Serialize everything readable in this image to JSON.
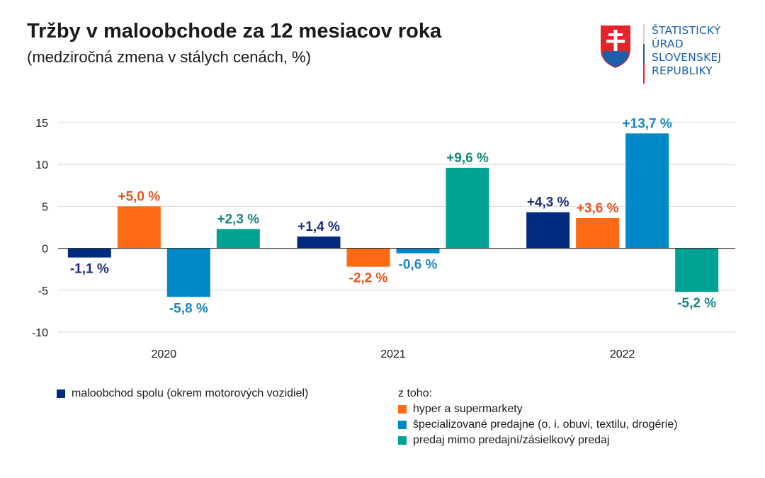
{
  "header": {
    "title": "Tržby v maloobchode za 12 mesiacov roka",
    "subtitle": "(medziročná zmena v stálych cenách, %)"
  },
  "logo": {
    "lines": [
      "ŠTATISTICKÝ",
      "ÚRAD",
      "SLOVENSKEJ",
      "REPUBLIKY"
    ],
    "icon": "slovak-coat-of-arms-icon",
    "colors": {
      "shield": "#e3242b",
      "hills": "#1a5fa8",
      "cross": "#ffffff",
      "divider_top": "#cccccc",
      "divider_mid": "#1a5fa8",
      "divider_bottom": "#e3242b"
    }
  },
  "chart_data": {
    "type": "bar",
    "title": "Tržby v maloobchode za 12 mesiacov roka",
    "subtitle": "(medziročná zmena v stálych cenách, %)",
    "xlabel": "",
    "ylabel": "",
    "ylim": [
      -10,
      15
    ],
    "yticks": [
      15,
      10,
      5,
      0,
      -5,
      -10
    ],
    "ytick_labels": [
      "15",
      "10",
      "5",
      "0",
      "-5",
      "-10"
    ],
    "grid": true,
    "categories": [
      "2020",
      "2021",
      "2022"
    ],
    "series": [
      {
        "name": "maloobchod spolu (okrem motorových vozidiel)",
        "color": "#002b7f",
        "label_color": "#1d2f7a",
        "values": [
          -1.1,
          1.4,
          4.3
        ],
        "labels": [
          "-1,1 %",
          "+1,4 %",
          "+4,3 %"
        ]
      },
      {
        "name": "hyper a supermarkety",
        "color": "#ff6a13",
        "label_color": "#e8531f",
        "values": [
          5.0,
          -2.2,
          3.6
        ],
        "labels": [
          "+5,0 %",
          "-2,2 %",
          "+3,6 %"
        ]
      },
      {
        "name": "špecializované predajne (o. i. obuvi, textilu, drogérie)",
        "color": "#0089c9",
        "label_color": "#1a86bf",
        "values": [
          -5.8,
          -0.6,
          13.7
        ],
        "labels": [
          "-5,8 %",
          "-0,6 %",
          "+13,7 %"
        ]
      },
      {
        "name": "predaj mimo predajní/zásielkový predaj",
        "color": "#00a294",
        "label_color": "#15867a",
        "values": [
          2.3,
          9.6,
          -5.2
        ],
        "labels": [
          "+2,3 %",
          "+9,6 %",
          "-5,2 %"
        ]
      }
    ],
    "legend": {
      "placement": "bottom",
      "subheading": "z toho:"
    }
  }
}
